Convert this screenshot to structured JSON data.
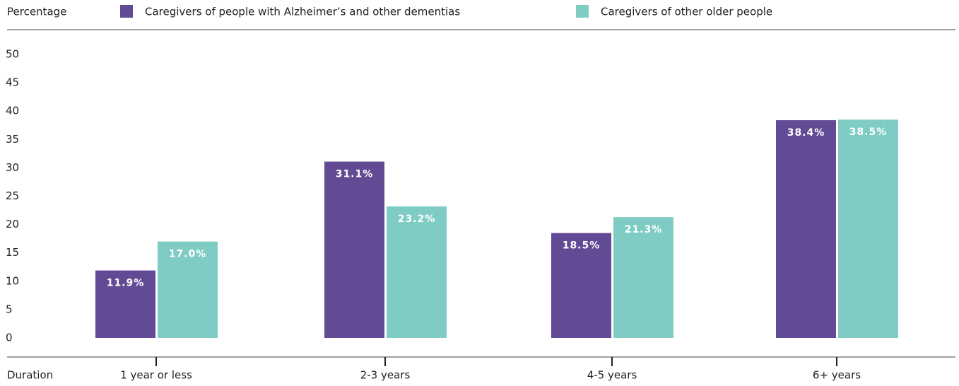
{
  "chart_data": {
    "type": "bar",
    "ylabel": "Percentage",
    "xlabel": "Duration",
    "categories": [
      "1 year or less",
      "2-3 years",
      "4-5 years",
      "6+ years"
    ],
    "series": [
      {
        "name": "Caregivers of people with Alzheimer’s and other dementias",
        "color": "#634a94",
        "values": [
          11.9,
          31.1,
          18.5,
          38.4
        ],
        "value_labels": [
          "11.9%",
          "31.1%",
          "18.5%",
          "38.4%"
        ]
      },
      {
        "name": "Caregivers of other older people",
        "color": "#7fccc4",
        "values": [
          17.0,
          23.2,
          21.3,
          38.5
        ],
        "value_labels": [
          "17.0%",
          "23.2%",
          "21.3%",
          "38.5%"
        ]
      }
    ],
    "ylim": [
      0,
      50
    ],
    "yticks": [
      0,
      5,
      10,
      15,
      20,
      25,
      30,
      35,
      40,
      45,
      50
    ],
    "grid": false
  }
}
